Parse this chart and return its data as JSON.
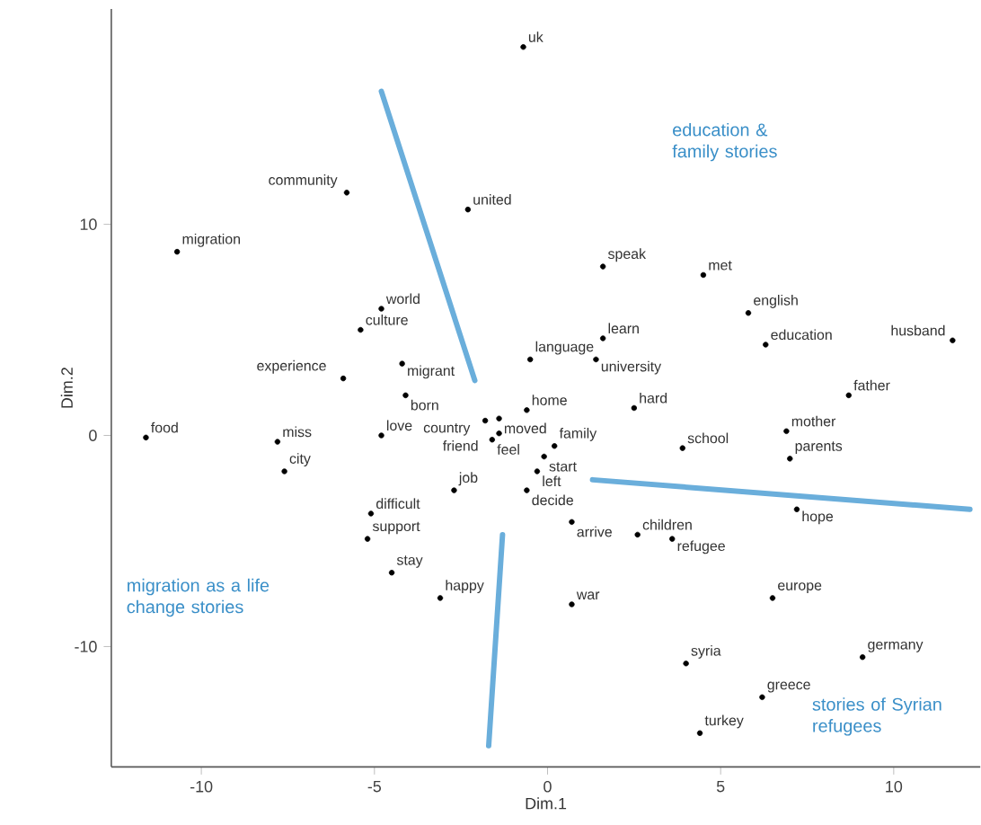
{
  "chart_data": {
    "type": "scatter",
    "xlabel": "Dim.1",
    "ylabel": "Dim.2",
    "xlim": [
      -12.6,
      12.5
    ],
    "ylim": [
      -15.7,
      20.2
    ],
    "xticks": [
      -10,
      -5,
      0,
      5,
      10
    ],
    "yticks": [
      -10,
      0,
      10
    ],
    "grid": false,
    "series": [
      {
        "marker": "circle",
        "color": "#000000",
        "x": [
          -0.7,
          -5.8,
          -2.3,
          -10.7,
          -4.8,
          -5.4,
          -4.2,
          -0.5,
          -5.9,
          4.5,
          1.6,
          1.6,
          5.8,
          6.3,
          1.4,
          11.7,
          -4.1,
          -11.6,
          -7.8,
          -7.6,
          -4.8,
          -1.8,
          -1.4,
          -1.6,
          -1.4,
          -0.6,
          -2.7,
          -0.6,
          -5.1,
          -5.2,
          -4.5,
          -3.1,
          -0.1,
          0.2,
          -0.3,
          2.5,
          3.9,
          6.9,
          7.0,
          8.7,
          7.2,
          2.6,
          0.7,
          3.6,
          6.5,
          0.7,
          4.0,
          9.1,
          6.2,
          4.4
        ],
        "values": [
          18.4,
          11.5,
          10.7,
          8.7,
          6.0,
          5.0,
          3.4,
          3.6,
          2.7,
          7.6,
          8.0,
          4.6,
          5.8,
          4.3,
          3.6,
          4.5,
          1.9,
          -0.1,
          -0.3,
          -1.7,
          0.0,
          0.7,
          0.8,
          -0.2,
          0.1,
          1.2,
          -2.6,
          -2.6,
          -3.7,
          -4.9,
          -6.5,
          -7.7,
          -1.0,
          -0.5,
          -1.7,
          1.3,
          -0.6,
          0.2,
          -1.1,
          1.9,
          -3.5,
          -4.7,
          -4.1,
          -4.9,
          -7.7,
          -8.0,
          -10.8,
          -10.5,
          -12.4,
          -14.1
        ],
        "value_labels": [
          "uk",
          "community",
          "united",
          "migration",
          "world",
          "culture",
          "migrant",
          "language",
          "experience",
          "met",
          "speak",
          "learn",
          "english",
          "education",
          "university",
          "husband",
          "born",
          "food",
          "miss",
          "city",
          "love",
          "country",
          "moved",
          "feel",
          "friend",
          "home",
          "job",
          "decide",
          "difficult",
          "support",
          "stay",
          "happy",
          "start",
          "family",
          "left",
          "hard",
          "school",
          "mother",
          "parents",
          "father",
          "hope",
          "children",
          "arrive",
          "refugee",
          "europe",
          "war",
          "syria",
          "germany",
          "greece",
          "turkey"
        ]
      },
      {
        "type": "line",
        "marker": "none",
        "color": "#6aaedb",
        "x": [
          -4.8,
          -2.1
        ],
        "values": [
          16.3,
          2.6
        ]
      },
      {
        "type": "line",
        "marker": "none",
        "color": "#6aaedb",
        "x": [
          -1.3,
          -1.7
        ],
        "values": [
          -4.7,
          -14.7
        ]
      },
      {
        "type": "line",
        "marker": "none",
        "color": "#6aaedb",
        "x": [
          1.3,
          12.2
        ],
        "values": [
          -2.1,
          -3.5
        ]
      }
    ],
    "annotations": [
      "education & family stories",
      "migration as a life change stories",
      "stories of Syrian refugees"
    ]
  }
}
